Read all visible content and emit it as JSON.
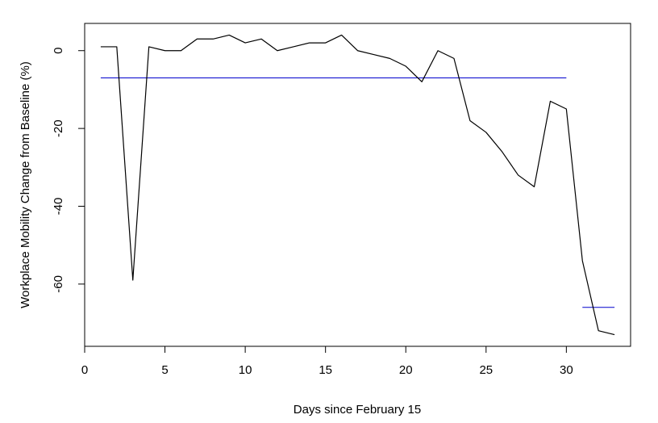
{
  "chart_data": {
    "type": "line",
    "xlabel": "Days since February 15",
    "ylabel": "Workplace Mobility Change from Baseline (%)",
    "xlim": [
      0,
      34
    ],
    "ylim": [
      -76,
      7
    ],
    "x_ticks": [
      0,
      5,
      10,
      15,
      20,
      25,
      30
    ],
    "y_ticks": [
      0,
      -20,
      -40,
      -60
    ],
    "x_tick_labels": [
      "0",
      "5",
      "10",
      "15",
      "20",
      "25",
      "30"
    ],
    "y_tick_labels": [
      "0",
      "-20",
      "-40",
      "-60"
    ],
    "grid": false,
    "series": [
      {
        "color": "#000000",
        "x": [
          1,
          2,
          3,
          4,
          5,
          6,
          7,
          8,
          9,
          10,
          11,
          12,
          13,
          14,
          15,
          16,
          17,
          18,
          19,
          20,
          21,
          22,
          23,
          24,
          25,
          26,
          27,
          28,
          29,
          30,
          31,
          32,
          33
        ],
        "values": [
          1,
          1,
          -59,
          1,
          0,
          0,
          3,
          3,
          4,
          2,
          3,
          0,
          1,
          2,
          2,
          4,
          0,
          -1,
          -2,
          -4,
          -8,
          0,
          -2,
          -18,
          -21,
          -26,
          -32,
          -35,
          -13,
          -15,
          -54,
          -72,
          -73
        ]
      }
    ],
    "reference_lines": [
      {
        "color": "#0000cc",
        "x_start": 1,
        "x_end": 30,
        "y": -7
      },
      {
        "color": "#0000cc",
        "x_start": 31,
        "x_end": 33,
        "y": -66
      }
    ]
  }
}
